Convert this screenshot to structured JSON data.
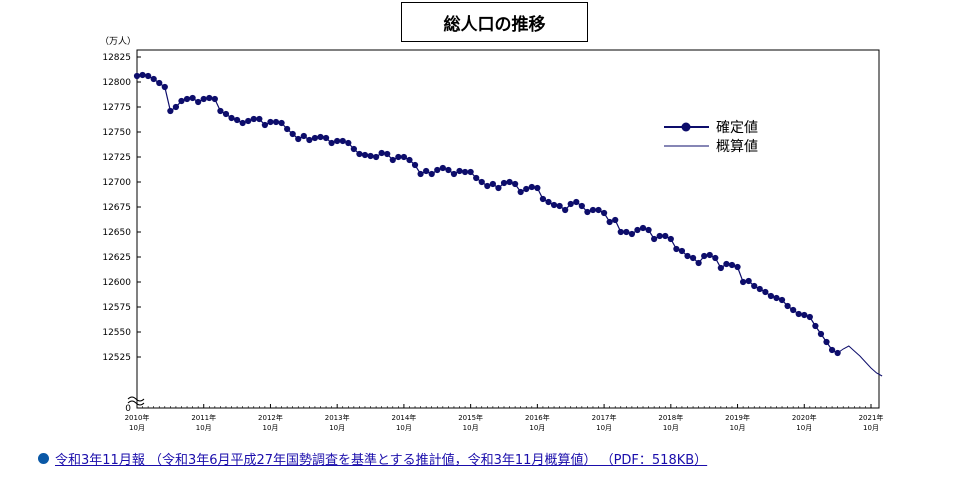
{
  "title": "総人口の推移",
  "footer": {
    "link_text": "令和3年11月報 （令和3年6月平成27年国勢調査を基準とする推計値，令和3年11月概算値） （PDF：518KB）"
  },
  "chart_data": {
    "type": "line",
    "title": "総人口の推移",
    "ylabel": "（万人）",
    "xlabel": "",
    "ylim": [
      12500,
      12825
    ],
    "y_ticks": [
      12525,
      12550,
      12575,
      12600,
      12625,
      12650,
      12675,
      12700,
      12725,
      12750,
      12775,
      12800,
      12825
    ],
    "y_zero_label": "0",
    "x_ticks": [
      {
        "year": "2010年",
        "month": "10月",
        "index": 0
      },
      {
        "year": "2011年",
        "month": "10月",
        "index": 12
      },
      {
        "year": "2012年",
        "month": "10月",
        "index": 24
      },
      {
        "year": "2013年",
        "month": "10月",
        "index": 36
      },
      {
        "year": "2014年",
        "month": "10月",
        "index": 48
      },
      {
        "year": "2015年",
        "month": "10月",
        "index": 60
      },
      {
        "year": "2016年",
        "month": "10月",
        "index": 72
      },
      {
        "year": "2017年",
        "month": "10月",
        "index": 84
      },
      {
        "year": "2018年",
        "month": "10月",
        "index": 96
      },
      {
        "year": "2019年",
        "month": "10月",
        "index": 108
      },
      {
        "year": "2020年",
        "month": "10月",
        "index": 120
      },
      {
        "year": "2021年",
        "month": "10月",
        "index": 132
      }
    ],
    "legend_position": "right",
    "grid": false,
    "colors": {
      "line": "#0d0d6b",
      "marker": "#0d0d6b"
    },
    "series": [
      {
        "name": "確定値",
        "start_index": 0,
        "values": [
          12806,
          12807,
          12806,
          12803,
          12799,
          12795,
          12771,
          12775,
          12781,
          12783,
          12784,
          12780,
          12783,
          12784,
          12783,
          12771,
          12768,
          12764,
          12762,
          12759,
          12761,
          12763,
          12763,
          12757,
          12760,
          12760,
          12759,
          12753,
          12748,
          12743,
          12746,
          12742,
          12744,
          12745,
          12744,
          12739,
          12741,
          12741,
          12739,
          12733,
          12728,
          12727,
          12726,
          12725,
          12729,
          12728,
          12722,
          12725,
          12725,
          12722,
          12717,
          12708,
          12711,
          12708,
          12712,
          12714,
          12712,
          12708,
          12711,
          12710,
          12710,
          12704,
          12700,
          12696,
          12698,
          12694,
          12699,
          12700,
          12698,
          12690,
          12693,
          12695,
          12694,
          12683,
          12680,
          12677,
          12676,
          12672,
          12678,
          12680,
          12676,
          12670,
          12672,
          12672,
          12669,
          12660,
          12662,
          12650,
          12650,
          12648,
          12652,
          12654,
          12652,
          12643,
          12646,
          12646,
          12643,
          12633,
          12631,
          12626,
          12624,
          12619,
          12626,
          12627,
          12624,
          12614,
          12618,
          12617,
          12615,
          12600,
          12601,
          12596,
          12593,
          12590,
          12586,
          12584,
          12582,
          12576,
          12572,
          12568,
          12567,
          12565,
          12556,
          12548,
          12540,
          12532,
          12529
        ]
      },
      {
        "name": "概算値",
        "start_index": 126,
        "values": [
          12529,
          12533,
          12536,
          12531,
          12526,
          12520,
          12514,
          12509,
          12506
        ]
      }
    ]
  }
}
